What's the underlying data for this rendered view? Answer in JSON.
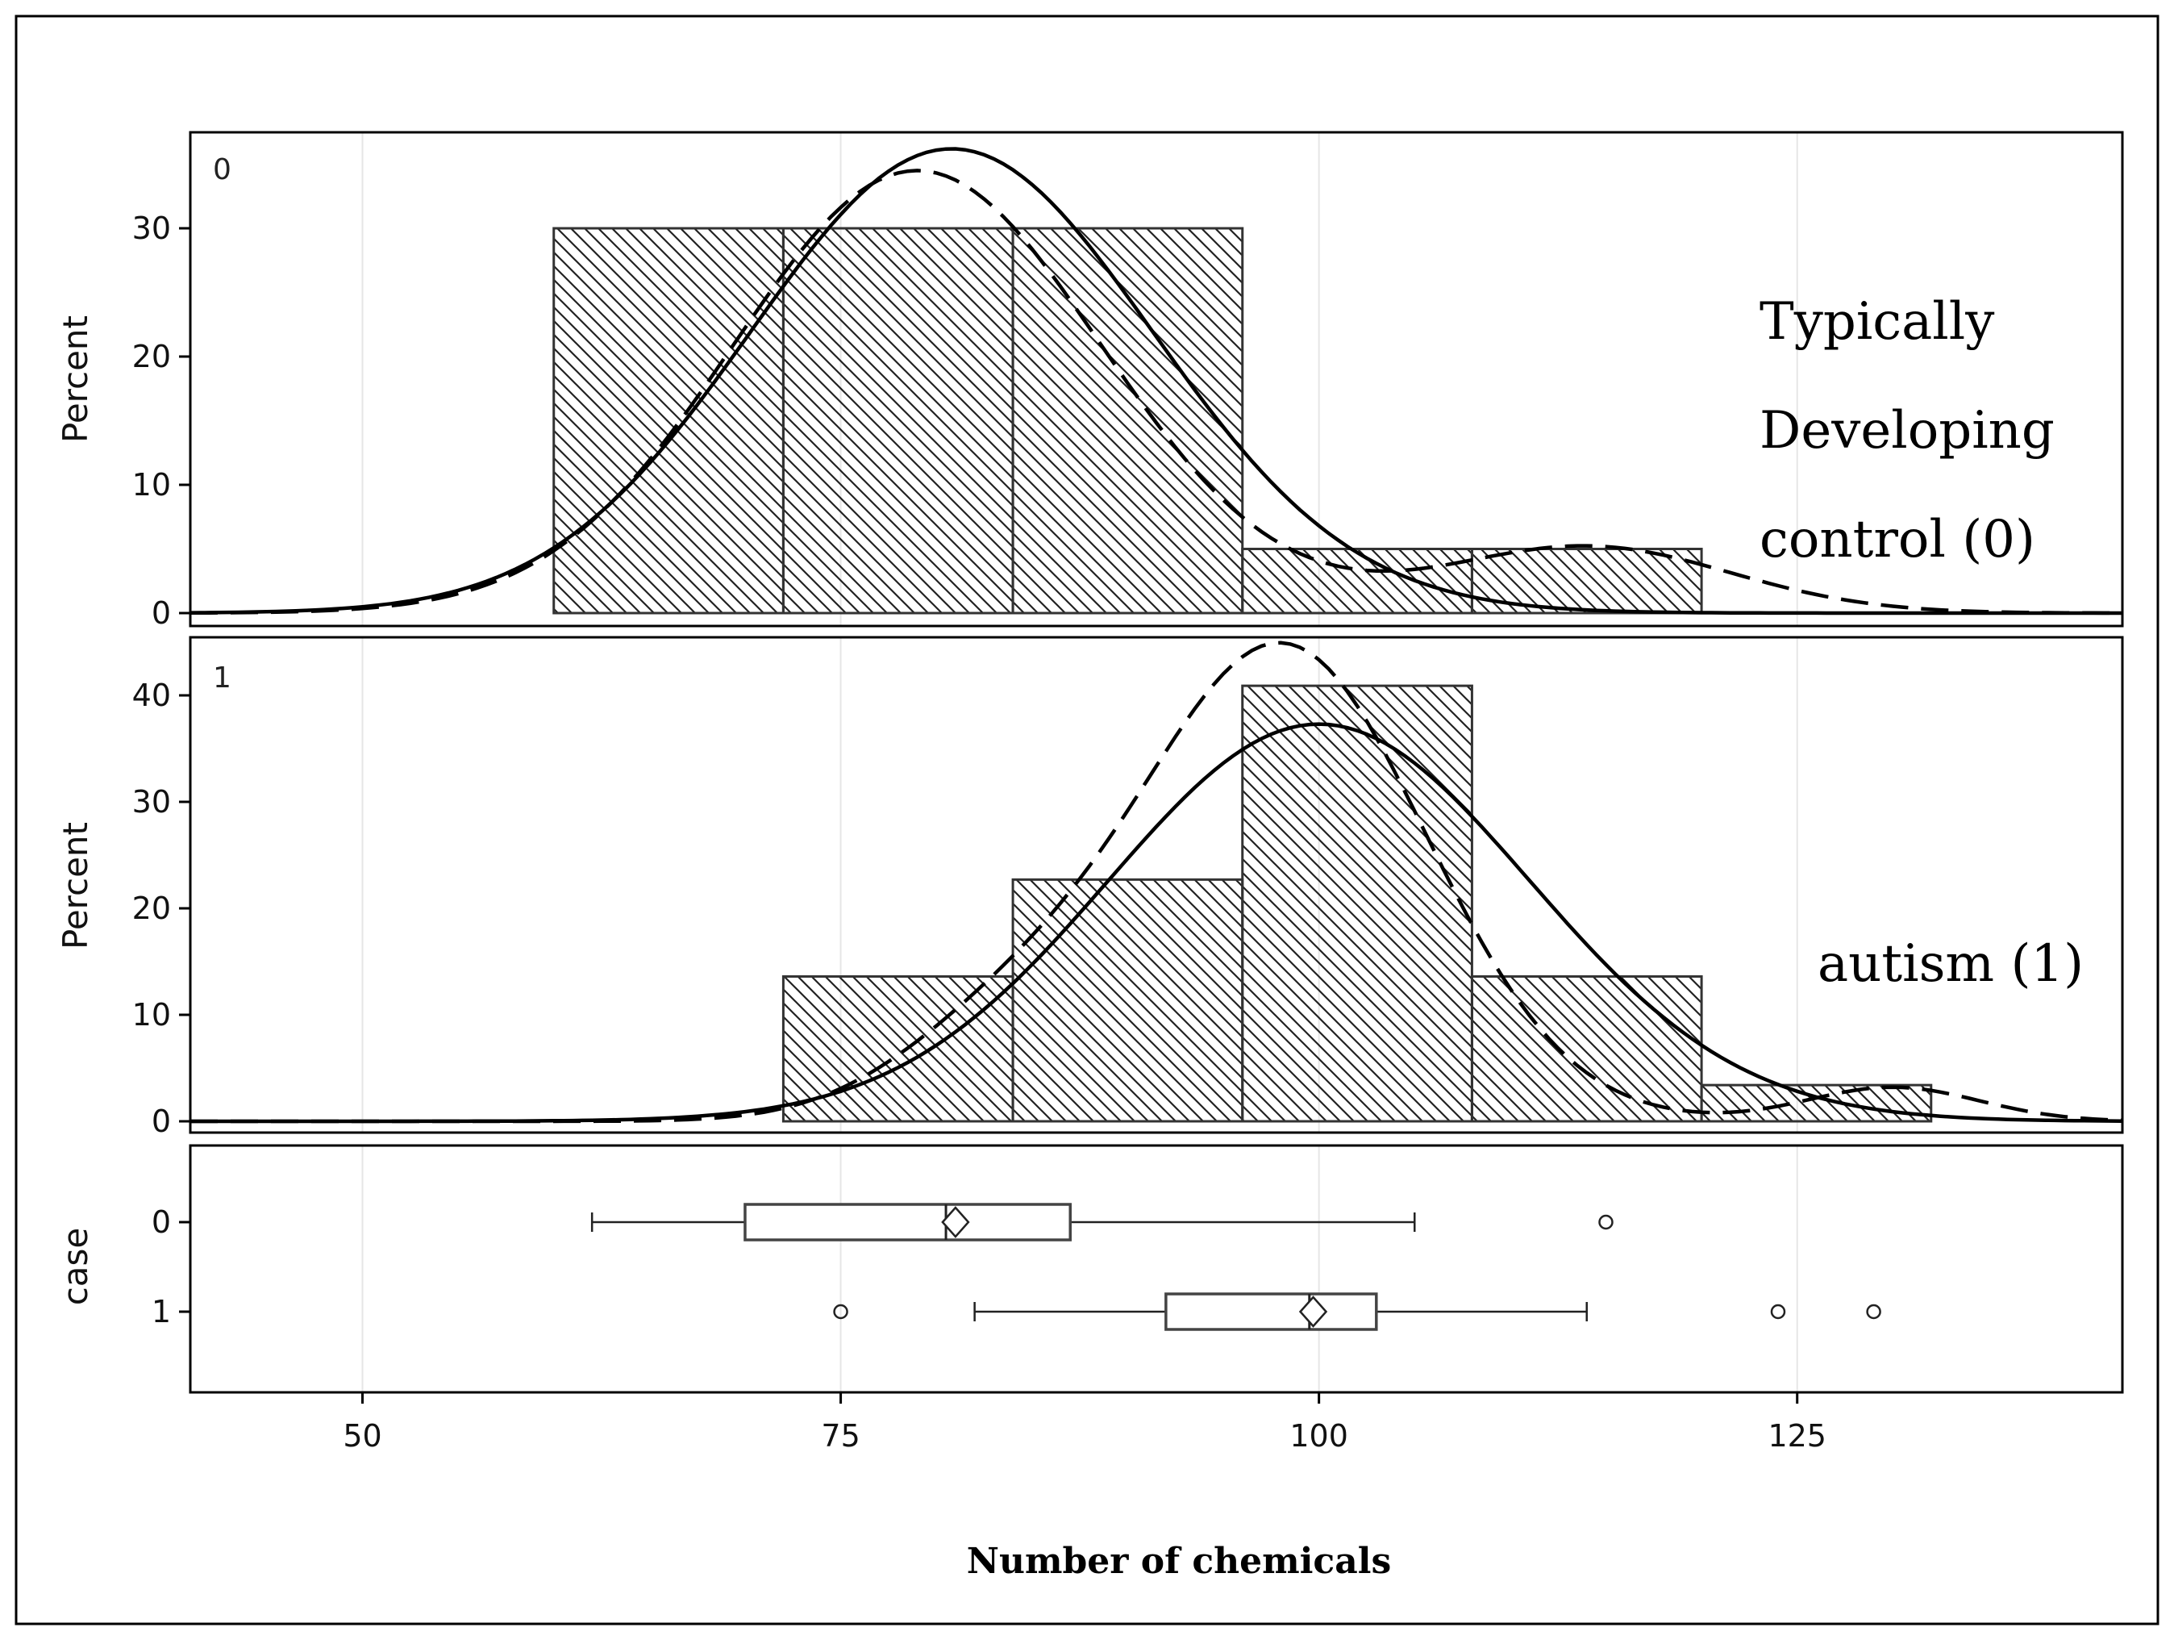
{
  "chart_data": {
    "type": "histogram",
    "xlabel": "Number of chemicals",
    "xlim": [
      41,
      142
    ],
    "x_ticks": [
      50,
      75,
      100,
      125
    ],
    "x_tick_labels": [
      "50",
      "75",
      "100",
      "125"
    ],
    "bin_edges": [
      60,
      72,
      84,
      96,
      108,
      120,
      132
    ],
    "panels": [
      {
        "id": "0",
        "ylabel": "Percent",
        "ylim": [
          0,
          36
        ],
        "y_ticks": [
          0,
          10,
          20,
          30
        ],
        "y_tick_labels": [
          "0",
          "10",
          "20",
          "30"
        ],
        "group_label": [
          "Typically",
          "Developing",
          "control (0)"
        ],
        "bins": [
          {
            "from": 60,
            "to": 72,
            "percent": 30
          },
          {
            "from": 72,
            "to": 84,
            "percent": 30
          },
          {
            "from": 84,
            "to": 96,
            "percent": 30
          },
          {
            "from": 96,
            "to": 108,
            "percent": 5
          },
          {
            "from": 108,
            "to": 120,
            "percent": 5
          }
        ],
        "normal_curve": {
          "style": "solid",
          "peak_x": 80.8,
          "peak_percent": 36.2
        },
        "kernel_curve": {
          "style": "dashed",
          "peak_x": 79,
          "peak_percent": 34.5
        }
      },
      {
        "id": "1",
        "ylabel": "Percent",
        "ylim": [
          0,
          46
        ],
        "y_ticks": [
          0,
          10,
          20,
          30,
          40
        ],
        "y_tick_labels": [
          "0",
          "10",
          "20",
          "30",
          "40"
        ],
        "group_label": [
          "autism (1)"
        ],
        "bins": [
          {
            "from": 72,
            "to": 84,
            "percent": 13.6
          },
          {
            "from": 84,
            "to": 96,
            "percent": 22.7
          },
          {
            "from": 96,
            "to": 108,
            "percent": 40.9
          },
          {
            "from": 108,
            "to": 120,
            "percent": 13.6
          },
          {
            "from": 120,
            "to": 132,
            "percent": 3.4
          }
        ],
        "normal_curve": {
          "style": "solid",
          "peak_x": 100,
          "peak_percent": 37.3
        },
        "kernel_curve": {
          "style": "dashed",
          "peak_x": 98.2,
          "peak_percent": 44.4
        }
      }
    ],
    "boxplot": {
      "ylabel": "case",
      "groups": [
        {
          "label": "0",
          "whisker_low": 62,
          "q1": 70,
          "median": 80.5,
          "mean": 81,
          "q3": 87,
          "whisker_high": 105,
          "outliers": [
            115
          ]
        },
        {
          "label": "1",
          "whisker_low": 82,
          "q1": 92,
          "median": 99.5,
          "mean": 99.7,
          "q3": 103,
          "whisker_high": 114,
          "outliers": [
            75,
            124,
            129
          ]
        }
      ]
    }
  }
}
